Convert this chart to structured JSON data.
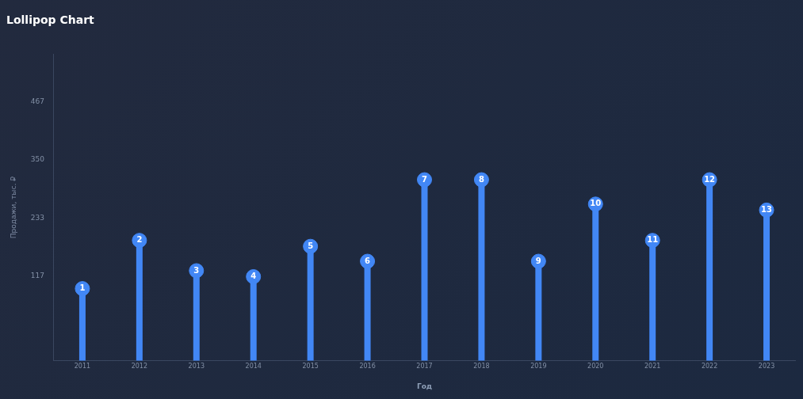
{
  "chart_data": {
    "type": "lollipop",
    "title": "Lollipop Chart",
    "xlabel": "Год",
    "ylabel": "Продажи, тыс. ₽",
    "categories": [
      "2011",
      "2012",
      "2013",
      "2014",
      "2015",
      "2016",
      "2017",
      "2018",
      "2019",
      "2020",
      "2021",
      "2022",
      "2023"
    ],
    "values": [
      91,
      188,
      127,
      115,
      176,
      146,
      310,
      310,
      146,
      261,
      188,
      310,
      249
    ],
    "annotations": [
      {
        "text": "1",
        "x": "2011",
        "y": 91
      },
      {
        "text": "2",
        "x": "2012",
        "y": 188
      },
      {
        "text": "3",
        "x": "2013",
        "y": 127
      },
      {
        "text": "4",
        "x": "2014",
        "y": 115
      },
      {
        "text": "5",
        "x": "2015",
        "y": 176
      },
      {
        "text": "6",
        "x": "2016",
        "y": 146
      },
      {
        "text": "7",
        "x": "2017",
        "y": 310
      },
      {
        "text": "8",
        "x": "2018",
        "y": 310
      },
      {
        "text": "9",
        "x": "2019",
        "y": 146
      },
      {
        "text": "10",
        "x": "2020",
        "y": 261
      },
      {
        "text": "11",
        "x": "2021",
        "y": 188
      },
      {
        "text": "12",
        "x": "2022",
        "y": 310
      },
      {
        "text": "13",
        "x": "2023",
        "y": 249
      }
    ],
    "color": "#4287f5",
    "ylim": [
      -54,
      562
    ],
    "yticks": [
      117,
      233,
      350,
      467
    ],
    "grid": false,
    "legend": false
  }
}
